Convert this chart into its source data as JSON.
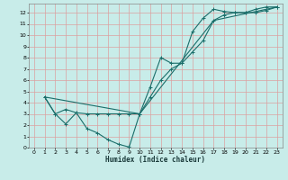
{
  "xlabel": "Humidex (Indice chaleur)",
  "bg_color": "#c8ece9",
  "grid_color": "#dba0a0",
  "line_color": "#1a6e6a",
  "xlim": [
    -0.5,
    23.5
  ],
  "ylim": [
    0,
    12.8
  ],
  "xticks": [
    0,
    1,
    2,
    3,
    4,
    5,
    6,
    7,
    8,
    9,
    10,
    11,
    12,
    13,
    14,
    15,
    16,
    17,
    18,
    19,
    20,
    21,
    22,
    23
  ],
  "yticks": [
    0,
    1,
    2,
    3,
    4,
    5,
    6,
    7,
    8,
    9,
    10,
    11,
    12
  ],
  "line1_x": [
    1,
    2,
    3,
    4,
    5,
    6,
    7,
    8,
    9,
    10,
    11,
    12,
    13,
    14,
    15,
    16,
    17,
    18,
    19,
    20,
    21,
    22,
    23
  ],
  "line1_y": [
    4.5,
    3.0,
    3.4,
    3.1,
    3.0,
    3.0,
    3.0,
    3.0,
    3.0,
    3.0,
    4.5,
    6.0,
    7.0,
    7.5,
    8.5,
    9.5,
    11.3,
    11.8,
    12.0,
    12.0,
    12.0,
    12.2,
    12.5
  ],
  "line2_x": [
    1,
    2,
    3,
    4,
    5,
    6,
    7,
    8,
    9,
    10,
    11,
    12,
    13,
    14,
    15,
    16,
    17,
    18,
    19,
    20,
    21,
    22,
    23
  ],
  "line2_y": [
    4.5,
    3.0,
    2.1,
    3.1,
    1.7,
    1.3,
    0.7,
    0.3,
    0.05,
    3.0,
    5.4,
    8.0,
    7.5,
    7.5,
    10.3,
    11.5,
    12.3,
    12.1,
    12.0,
    12.0,
    12.3,
    12.5,
    12.5
  ],
  "line3_x": [
    1,
    10,
    17,
    23
  ],
  "line3_y": [
    4.5,
    3.0,
    11.3,
    12.5
  ]
}
